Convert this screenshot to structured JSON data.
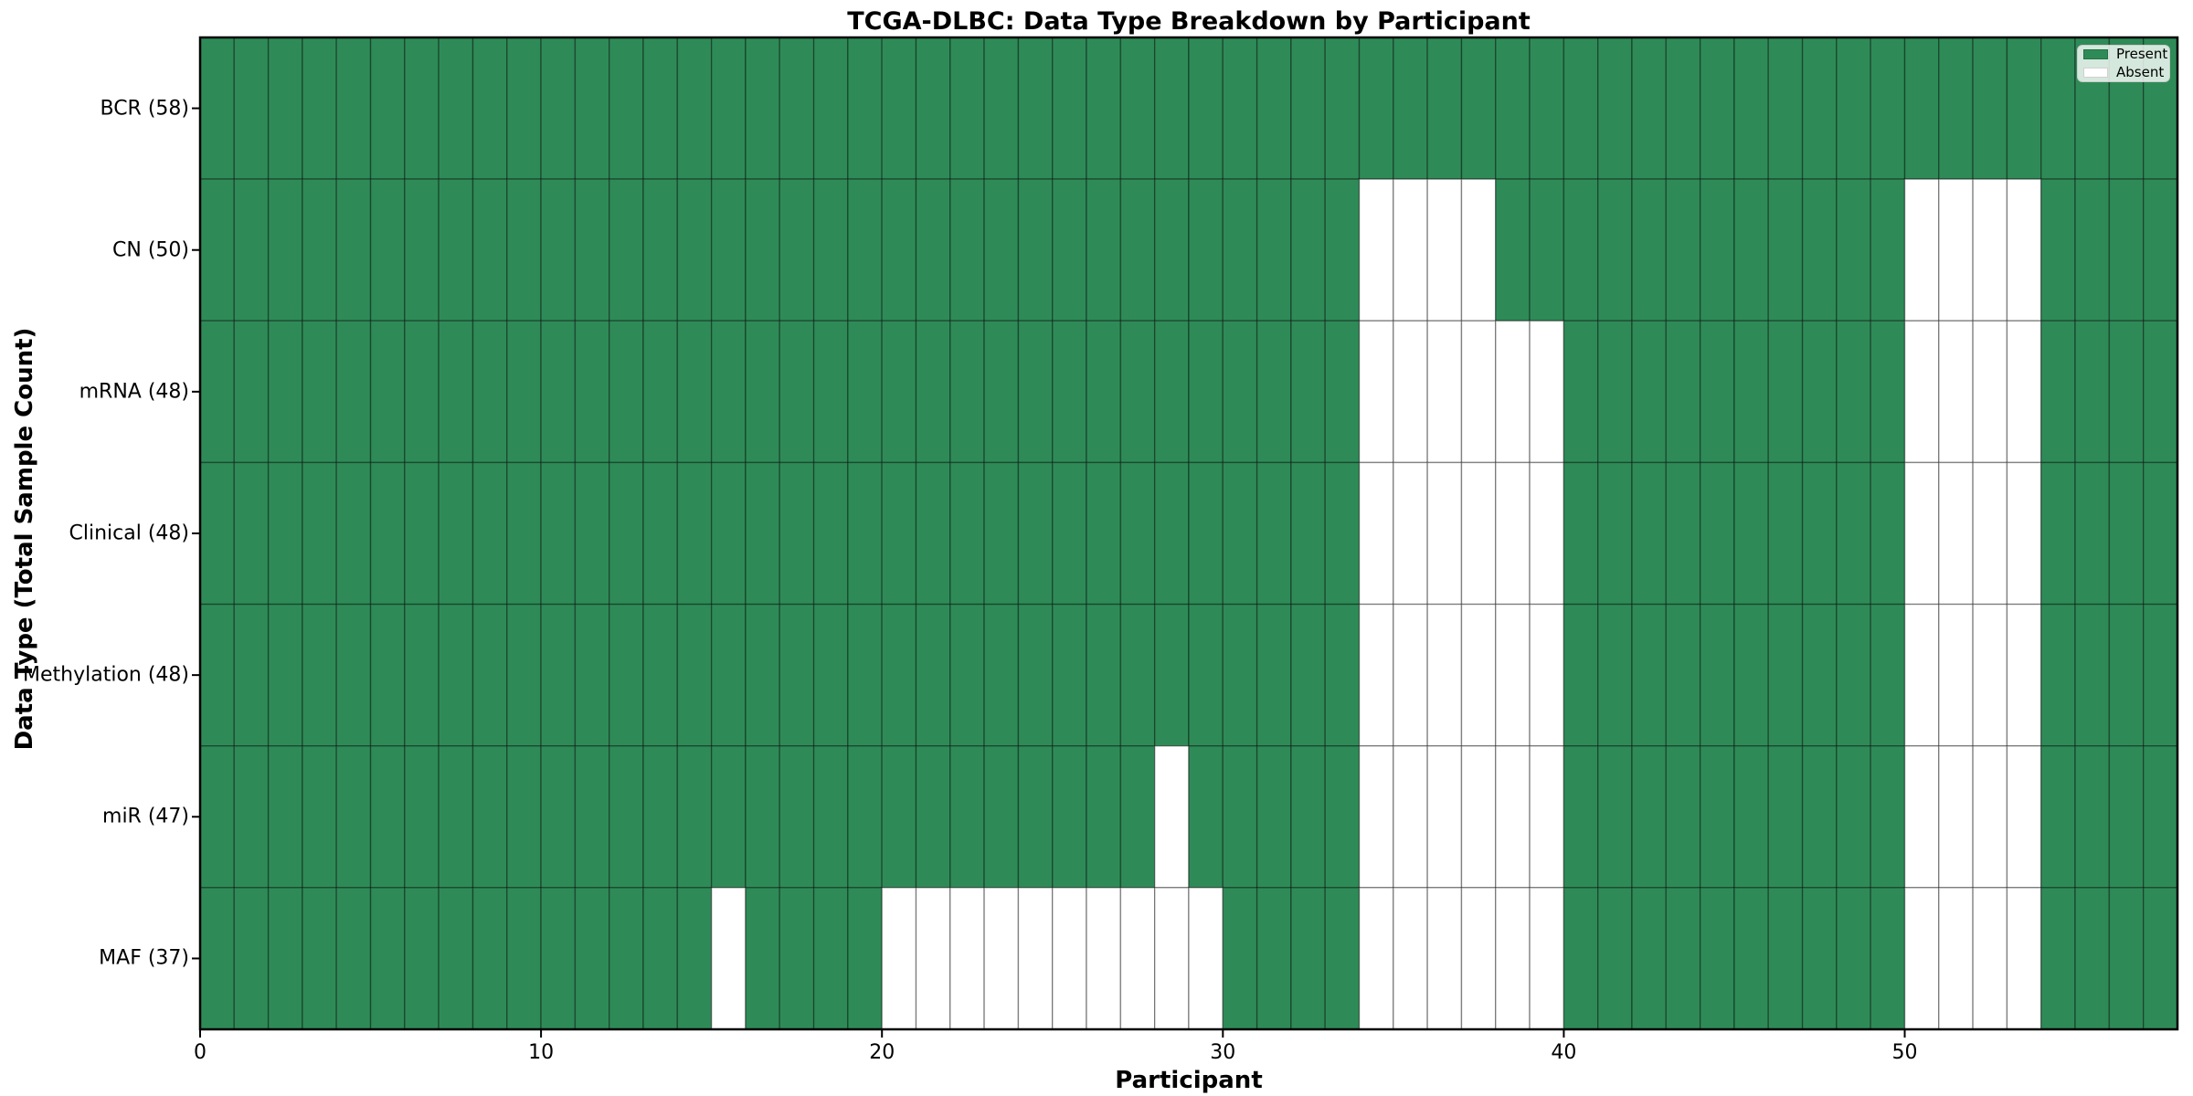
{
  "chart_data": {
    "type": "heatmap",
    "title": "TCGA-DLBC: Data Type Breakdown by Participant",
    "xlabel": "Participant",
    "ylabel": "Data Type (Total Sample Count)",
    "x_ticks": [
      0,
      10,
      20,
      30,
      40,
      50
    ],
    "x_range": [
      0,
      58
    ],
    "n_participants": 58,
    "cell_states": [
      "present",
      "absent"
    ],
    "colors": {
      "present": "#2e8b57",
      "absent": "#ffffff",
      "cell_edge": "rgba(0,0,0,0.38)",
      "spine": "#000000",
      "text": "#000000"
    },
    "legend": {
      "position": "upper-right",
      "entries": [
        {
          "label": "Present",
          "color": "#2e8b57"
        },
        {
          "label": "Absent",
          "color": "#ffffff"
        }
      ]
    },
    "rows": [
      {
        "label": "BCR (58)",
        "data_type": "BCR",
        "total_sample_count": 58,
        "absent_participants": []
      },
      {
        "label": "CN (50)",
        "data_type": "CN",
        "total_sample_count": 50,
        "absent_participants": [
          34,
          35,
          36,
          37,
          50,
          51,
          52,
          53
        ]
      },
      {
        "label": "mRNA (48)",
        "data_type": "mRNA",
        "total_sample_count": 48,
        "absent_participants": [
          34,
          35,
          36,
          37,
          38,
          39,
          50,
          51,
          52,
          53
        ]
      },
      {
        "label": "Clinical (48)",
        "data_type": "Clinical",
        "total_sample_count": 48,
        "absent_participants": [
          34,
          35,
          36,
          37,
          38,
          39,
          50,
          51,
          52,
          53
        ]
      },
      {
        "label": "Methylation (48)",
        "data_type": "Methylation",
        "total_sample_count": 48,
        "absent_participants": [
          34,
          35,
          36,
          37,
          38,
          39,
          50,
          51,
          52,
          53
        ]
      },
      {
        "label": "miR (47)",
        "data_type": "miR",
        "total_sample_count": 47,
        "absent_participants": [
          28,
          34,
          35,
          36,
          37,
          38,
          39,
          50,
          51,
          52,
          53
        ]
      },
      {
        "label": "MAF (37)",
        "data_type": "MAF",
        "total_sample_count": 37,
        "absent_participants": [
          15,
          20,
          21,
          22,
          23,
          24,
          25,
          26,
          27,
          28,
          29,
          34,
          35,
          36,
          37,
          38,
          39,
          50,
          51,
          52,
          53
        ]
      }
    ]
  }
}
